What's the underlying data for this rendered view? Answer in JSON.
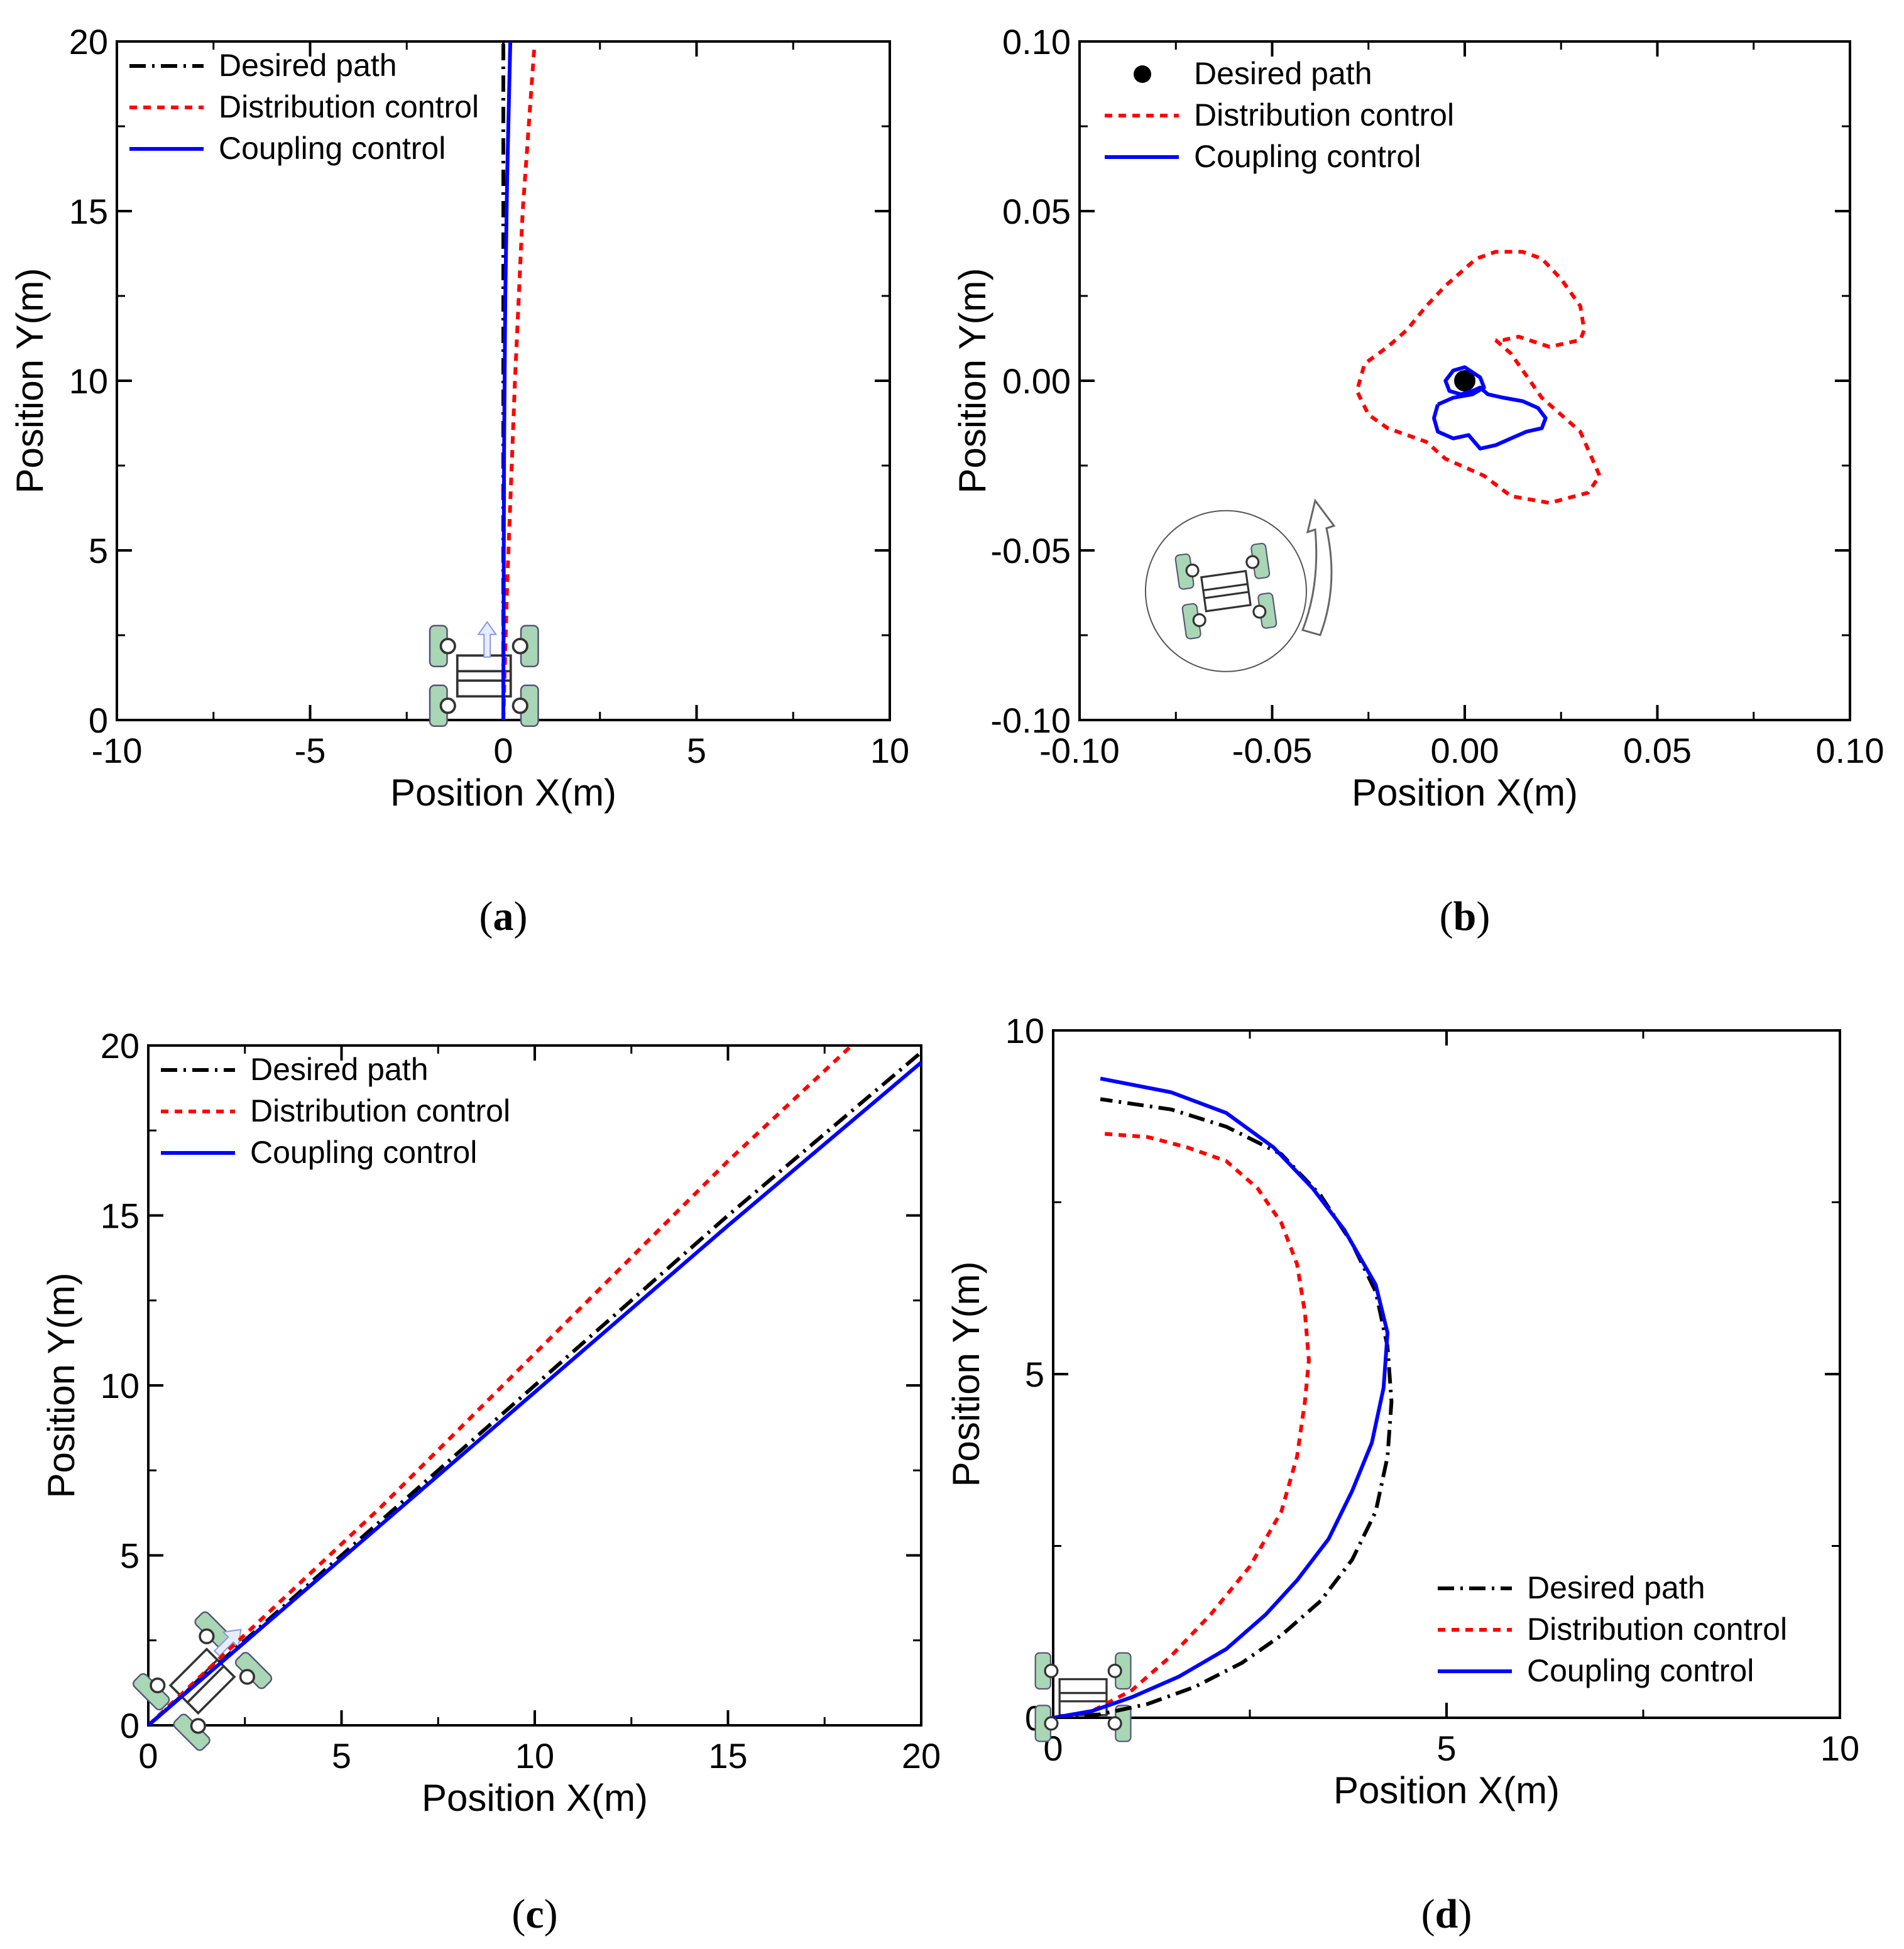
{
  "colors": {
    "desired": "#000000",
    "distribution": "#ff0000",
    "coupling": "#0000ff",
    "axis": "#000000",
    "robot_wheel": "#a9d6b4"
  },
  "legend_labels": {
    "desired": "Desired path",
    "distribution": "Distribution control",
    "coupling": "Coupling control"
  },
  "icons": {
    "robot": "four-wheel-robot-icon",
    "rotation": "rotation-arrow-icon",
    "heading": "heading-arrow-icon"
  },
  "chart_data": [
    {
      "panel": "a",
      "caption_letter": "a",
      "type": "line",
      "xlabel": "Position X(m)",
      "ylabel": "Position Y(m)",
      "xlim": [
        -10,
        10
      ],
      "ylim": [
        0,
        20
      ],
      "xticks": [
        -10,
        -5,
        0,
        5,
        10
      ],
      "xtick_labels": [
        "-10",
        "-5",
        "0",
        "5",
        "10"
      ],
      "yticks": [
        0,
        5,
        10,
        15,
        20
      ],
      "ytick_labels": [
        "0",
        "5",
        "10",
        "15",
        "20"
      ],
      "legend_position": "top-left",
      "series": [
        {
          "name": "Desired path",
          "style": "dashdot",
          "marker": "none",
          "x": [
            0,
            0
          ],
          "y": [
            0,
            20
          ]
        },
        {
          "name": "Distribution control",
          "style": "dotted",
          "marker": "none",
          "x": [
            0,
            0.1,
            0.3,
            0.5,
            0.8
          ],
          "y": [
            0,
            4,
            10,
            15,
            19.8
          ]
        },
        {
          "name": "Coupling control",
          "style": "solid",
          "marker": "none",
          "x": [
            0,
            0.02,
            0.05,
            0.1,
            0.15,
            0.18
          ],
          "y": [
            0,
            8,
            12.5,
            16,
            18.5,
            20
          ]
        }
      ]
    },
    {
      "panel": "b",
      "caption_letter": "b",
      "type": "line",
      "xlabel": "Position X(m)",
      "ylabel": "Position Y(m)",
      "xlim": [
        -0.1,
        0.1
      ],
      "ylim": [
        -0.1,
        0.1
      ],
      "xticks": [
        -0.1,
        -0.05,
        0,
        0.05,
        0.1
      ],
      "xtick_labels": [
        "-0.10",
        "-0.05",
        "0.00",
        "0.05",
        "0.10"
      ],
      "yticks": [
        -0.1,
        -0.05,
        0,
        0.05,
        0.1
      ],
      "ytick_labels": [
        "-0.10",
        "-0.05",
        "0.00",
        "0.05",
        "0.10"
      ],
      "legend_position": "top-left",
      "series": [
        {
          "name": "Desired path",
          "style": "point",
          "marker": "circle",
          "x": [
            0
          ],
          "y": [
            0
          ]
        },
        {
          "name": "Distribution control",
          "style": "dotted",
          "marker": "none",
          "x": [
            0.008,
            0.012,
            0.02,
            0.03,
            0.035,
            0.032,
            0.022,
            0.012,
            0.005,
            -0.005,
            -0.01,
            -0.015,
            -0.02,
            -0.025,
            -0.028,
            -0.026,
            -0.02,
            -0.015,
            -0.01,
            -0.005,
            0,
            0.003,
            0.008,
            0.015,
            0.02,
            0.025,
            0.03,
            0.031,
            0.03,
            0.022,
            0.014,
            0.01,
            0.008
          ],
          "y": [
            0.012,
            0.008,
            -0.005,
            -0.015,
            -0.028,
            -0.033,
            -0.036,
            -0.034,
            -0.028,
            -0.023,
            -0.018,
            -0.016,
            -0.014,
            -0.01,
            -0.003,
            0.005,
            0.01,
            0.015,
            0.022,
            0.028,
            0.033,
            0.036,
            0.038,
            0.038,
            0.036,
            0.03,
            0.022,
            0.015,
            0.012,
            0.01,
            0.013,
            0.012,
            0.012
          ]
        },
        {
          "name": "Coupling control",
          "style": "solid",
          "marker": "none",
          "x": [
            -0.007,
            -0.003,
            0.002,
            0.005,
            0.004,
            0.0,
            -0.003,
            -0.005,
            -0.004,
            -0.001,
            0.002,
            0.004,
            0.006,
            0.01,
            0.015,
            0.019,
            0.021,
            0.02,
            0.016,
            0.012,
            0.008,
            0.004,
            0.001,
            -0.003,
            -0.007,
            -0.008,
            -0.007
          ],
          "y": [
            -0.007,
            -0.005,
            -0.004,
            -0.002,
            0.001,
            0.004,
            0.003,
            0.0,
            -0.003,
            -0.004,
            -0.003,
            -0.002,
            -0.004,
            -0.005,
            -0.006,
            -0.008,
            -0.011,
            -0.014,
            -0.015,
            -0.017,
            -0.019,
            -0.02,
            -0.016,
            -0.017,
            -0.015,
            -0.011,
            -0.007
          ]
        }
      ]
    },
    {
      "panel": "c",
      "caption_letter": "c",
      "type": "line",
      "xlabel": "Position X(m)",
      "ylabel": "Position Y(m)",
      "xlim": [
        0,
        20
      ],
      "ylim": [
        0,
        20
      ],
      "xticks": [
        0,
        5,
        10,
        15,
        20
      ],
      "xtick_labels": [
        "0",
        "5",
        "10",
        "15",
        "20"
      ],
      "yticks": [
        0,
        5,
        10,
        15,
        20
      ],
      "ytick_labels": [
        "0",
        "5",
        "10",
        "15",
        "20"
      ],
      "legend_position": "top-left",
      "series": [
        {
          "name": "Desired path",
          "style": "dashdot",
          "marker": "none",
          "x": [
            0,
            5,
            10,
            15,
            20
          ],
          "y": [
            0,
            5,
            10,
            15,
            19.8
          ]
        },
        {
          "name": "Distribution control",
          "style": "dotted",
          "marker": "none",
          "x": [
            0,
            3,
            6,
            9,
            12,
            15,
            18.2
          ],
          "y": [
            0,
            3.2,
            6.4,
            9.8,
            13.2,
            16.6,
            20
          ]
        },
        {
          "name": "Coupling control",
          "style": "solid",
          "marker": "none",
          "x": [
            0,
            5,
            10,
            15,
            20
          ],
          "y": [
            0,
            4.9,
            9.8,
            14.7,
            19.5
          ]
        }
      ]
    },
    {
      "panel": "d",
      "caption_letter": "d",
      "type": "line",
      "xlabel": "Position X(m)",
      "ylabel": "Position Y(m)",
      "xlim": [
        0,
        10
      ],
      "ylim": [
        0,
        10
      ],
      "xticks": [
        0,
        5,
        10
      ],
      "xtick_labels": [
        "0",
        "5",
        "10"
      ],
      "yticks": [
        0,
        5,
        10
      ],
      "ytick_labels": [
        "0",
        "5",
        "10"
      ],
      "legend_position": "bottom-right",
      "series": [
        {
          "name": "Desired path",
          "style": "dashdot",
          "marker": "none",
          "x": [
            0,
            0.6,
            1.2,
            1.8,
            2.4,
            2.9,
            3.4,
            3.8,
            4.1,
            4.25,
            4.3,
            4.25,
            4.1,
            3.8,
            3.4,
            2.9,
            2.2,
            1.5,
            0.6
          ],
          "y": [
            0,
            0.05,
            0.2,
            0.45,
            0.8,
            1.2,
            1.7,
            2.3,
            3.0,
            3.8,
            4.6,
            5.4,
            6.2,
            6.9,
            7.6,
            8.2,
            8.6,
            8.85,
            9.0
          ]
        },
        {
          "name": "Distribution control",
          "style": "dotted",
          "marker": "none",
          "x": [
            0,
            0.5,
            1.0,
            1.5,
            2.0,
            2.5,
            2.9,
            3.1,
            3.2,
            3.25,
            3.2,
            3.1,
            2.9,
            2.6,
            2.2,
            1.7,
            1.2,
            0.6
          ],
          "y": [
            0,
            0.1,
            0.4,
            0.9,
            1.5,
            2.2,
            3.0,
            3.8,
            4.6,
            5.2,
            5.9,
            6.6,
            7.2,
            7.7,
            8.1,
            8.3,
            8.45,
            8.5
          ]
        },
        {
          "name": "Coupling control",
          "style": "solid",
          "marker": "none",
          "x": [
            0,
            0.5,
            1.0,
            1.6,
            2.2,
            2.7,
            3.1,
            3.5,
            3.8,
            4.05,
            4.2,
            4.25,
            4.1,
            3.7,
            3.3,
            2.8,
            2.2,
            1.5,
            0.6
          ],
          "y": [
            0,
            0.1,
            0.3,
            0.6,
            1.0,
            1.5,
            2.0,
            2.6,
            3.3,
            4.0,
            4.8,
            5.6,
            6.3,
            7.1,
            7.7,
            8.3,
            8.8,
            9.1,
            9.3
          ]
        }
      ]
    }
  ]
}
